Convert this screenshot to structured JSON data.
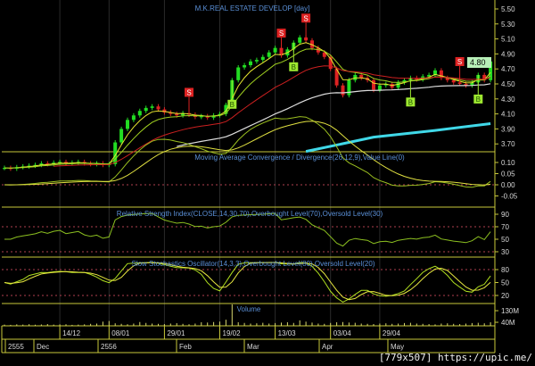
{
  "chart_data": {
    "type": "candlestick",
    "title": "M.K.REAL ESTATE DEVELOP [day]",
    "last_price_label": "4.80",
    "closes": [
      3.38,
      3.37,
      3.39,
      3.4,
      3.41,
      3.42,
      3.44,
      3.43,
      3.45,
      3.46,
      3.44,
      3.45,
      3.46,
      3.44,
      3.43,
      3.44,
      3.42,
      3.43,
      3.72,
      3.9,
      4.02,
      4.08,
      4.14,
      4.18,
      4.2,
      4.16,
      4.12,
      4.1,
      4.08,
      4.11,
      4.09,
      4.06,
      4.07,
      4.05,
      4.08,
      4.1,
      4.22,
      4.55,
      4.72,
      4.75,
      4.8,
      4.82,
      4.86,
      4.92,
      4.98,
      4.88,
      4.96,
      5.05,
      5.12,
      5.08,
      4.98,
      4.92,
      4.86,
      4.7,
      4.48,
      4.35,
      4.55,
      4.62,
      4.58,
      4.55,
      4.42,
      4.48,
      4.5,
      4.45,
      4.52,
      4.55,
      4.58,
      4.56,
      4.6,
      4.62,
      4.68,
      4.58,
      4.55,
      4.52,
      4.5,
      4.48,
      4.52,
      4.62,
      4.55,
      4.8
    ],
    "volume_millions": [
      22,
      20,
      24,
      22,
      25,
      21,
      23,
      26,
      22,
      24,
      25,
      20,
      22,
      24,
      28,
      30,
      45,
      50,
      32,
      28,
      25,
      30,
      42,
      35,
      30,
      28,
      26,
      30,
      33,
      28,
      25,
      30,
      40,
      38,
      42,
      45,
      60,
      185,
      40,
      35,
      30,
      32,
      36,
      30,
      34,
      38,
      40,
      35,
      55,
      45,
      38,
      30,
      28,
      35,
      40,
      42,
      38,
      36,
      30,
      28,
      26,
      30,
      32,
      28,
      30,
      34,
      36,
      30,
      28,
      26,
      24,
      30,
      32,
      28,
      26,
      30,
      34,
      36,
      32,
      40
    ],
    "long_ma_points": [
      [
        49,
        3.6
      ],
      [
        56,
        3.72
      ],
      [
        60,
        3.79
      ],
      [
        70,
        3.88
      ],
      [
        79,
        3.97
      ]
    ],
    "signals": [
      {
        "type": "S",
        "bar": 30,
        "label": "S"
      },
      {
        "type": "S",
        "bar": 45,
        "label": "S"
      },
      {
        "type": "S",
        "bar": 49,
        "label": "S"
      },
      {
        "type": "S",
        "bar": 74,
        "label": "S"
      },
      {
        "type": "B",
        "bar": 37,
        "label": "B"
      },
      {
        "type": "B",
        "bar": 47,
        "label": "B"
      },
      {
        "type": "B",
        "bar": 66,
        "label": "B"
      },
      {
        "type": "B",
        "bar": 77,
        "label": "B"
      }
    ],
    "price_axis": [
      "5.50",
      "5.30",
      "5.10",
      "4.90",
      "4.70",
      "4.50",
      "4.30",
      "4.10",
      "3.90",
      "3.70"
    ],
    "macd": {
      "title": "Moving Average Convergence / Divergence(26,12,9),Value Line(0)",
      "axis": [
        "0.10",
        "0.05",
        "0.00",
        "-0.05"
      ]
    },
    "rsi": {
      "title": "Relative Strength Index(CLOSE,14,30,70),Overbought Level(70),Oversold Level(30)",
      "axis": [
        "90",
        "70",
        "50",
        "30"
      ]
    },
    "stoch": {
      "title": "Slow Stochastics Oscillator(14,3,3),Overbought Level(80),Oversold Level(20)",
      "axis": [
        "80",
        "50",
        "20"
      ]
    },
    "volume": {
      "title": "Volume",
      "axis": [
        "130M",
        "40M"
      ]
    },
    "date_ticks": [
      {
        "label": "14/12",
        "bar": 9
      },
      {
        "label": "08/01",
        "bar": 17
      },
      {
        "label": "29/01",
        "bar": 26
      },
      {
        "label": "19/02",
        "bar": 35
      },
      {
        "label": "13/03",
        "bar": 44
      },
      {
        "label": "03/04",
        "bar": 53
      },
      {
        "label": "29/04",
        "bar": 61
      }
    ],
    "month_row": [
      "2555",
      "Dec",
      "2556",
      "Feb",
      "Mar",
      "Apr",
      "May"
    ],
    "colors": {
      "up": "#22dd22",
      "down": "#dd2222",
      "border": "#c8c83a",
      "title": "#5a8fd6",
      "ma_fast": "#e8e830",
      "ma_mid": "#a0d020",
      "ma_slow": "#cc2020",
      "ma_long": "#dddddd",
      "ma_longest": "#40d8e8",
      "sell": "#dd2222",
      "buy": "#9ee830"
    }
  },
  "watermark": "[779x507] https://upic.me/"
}
